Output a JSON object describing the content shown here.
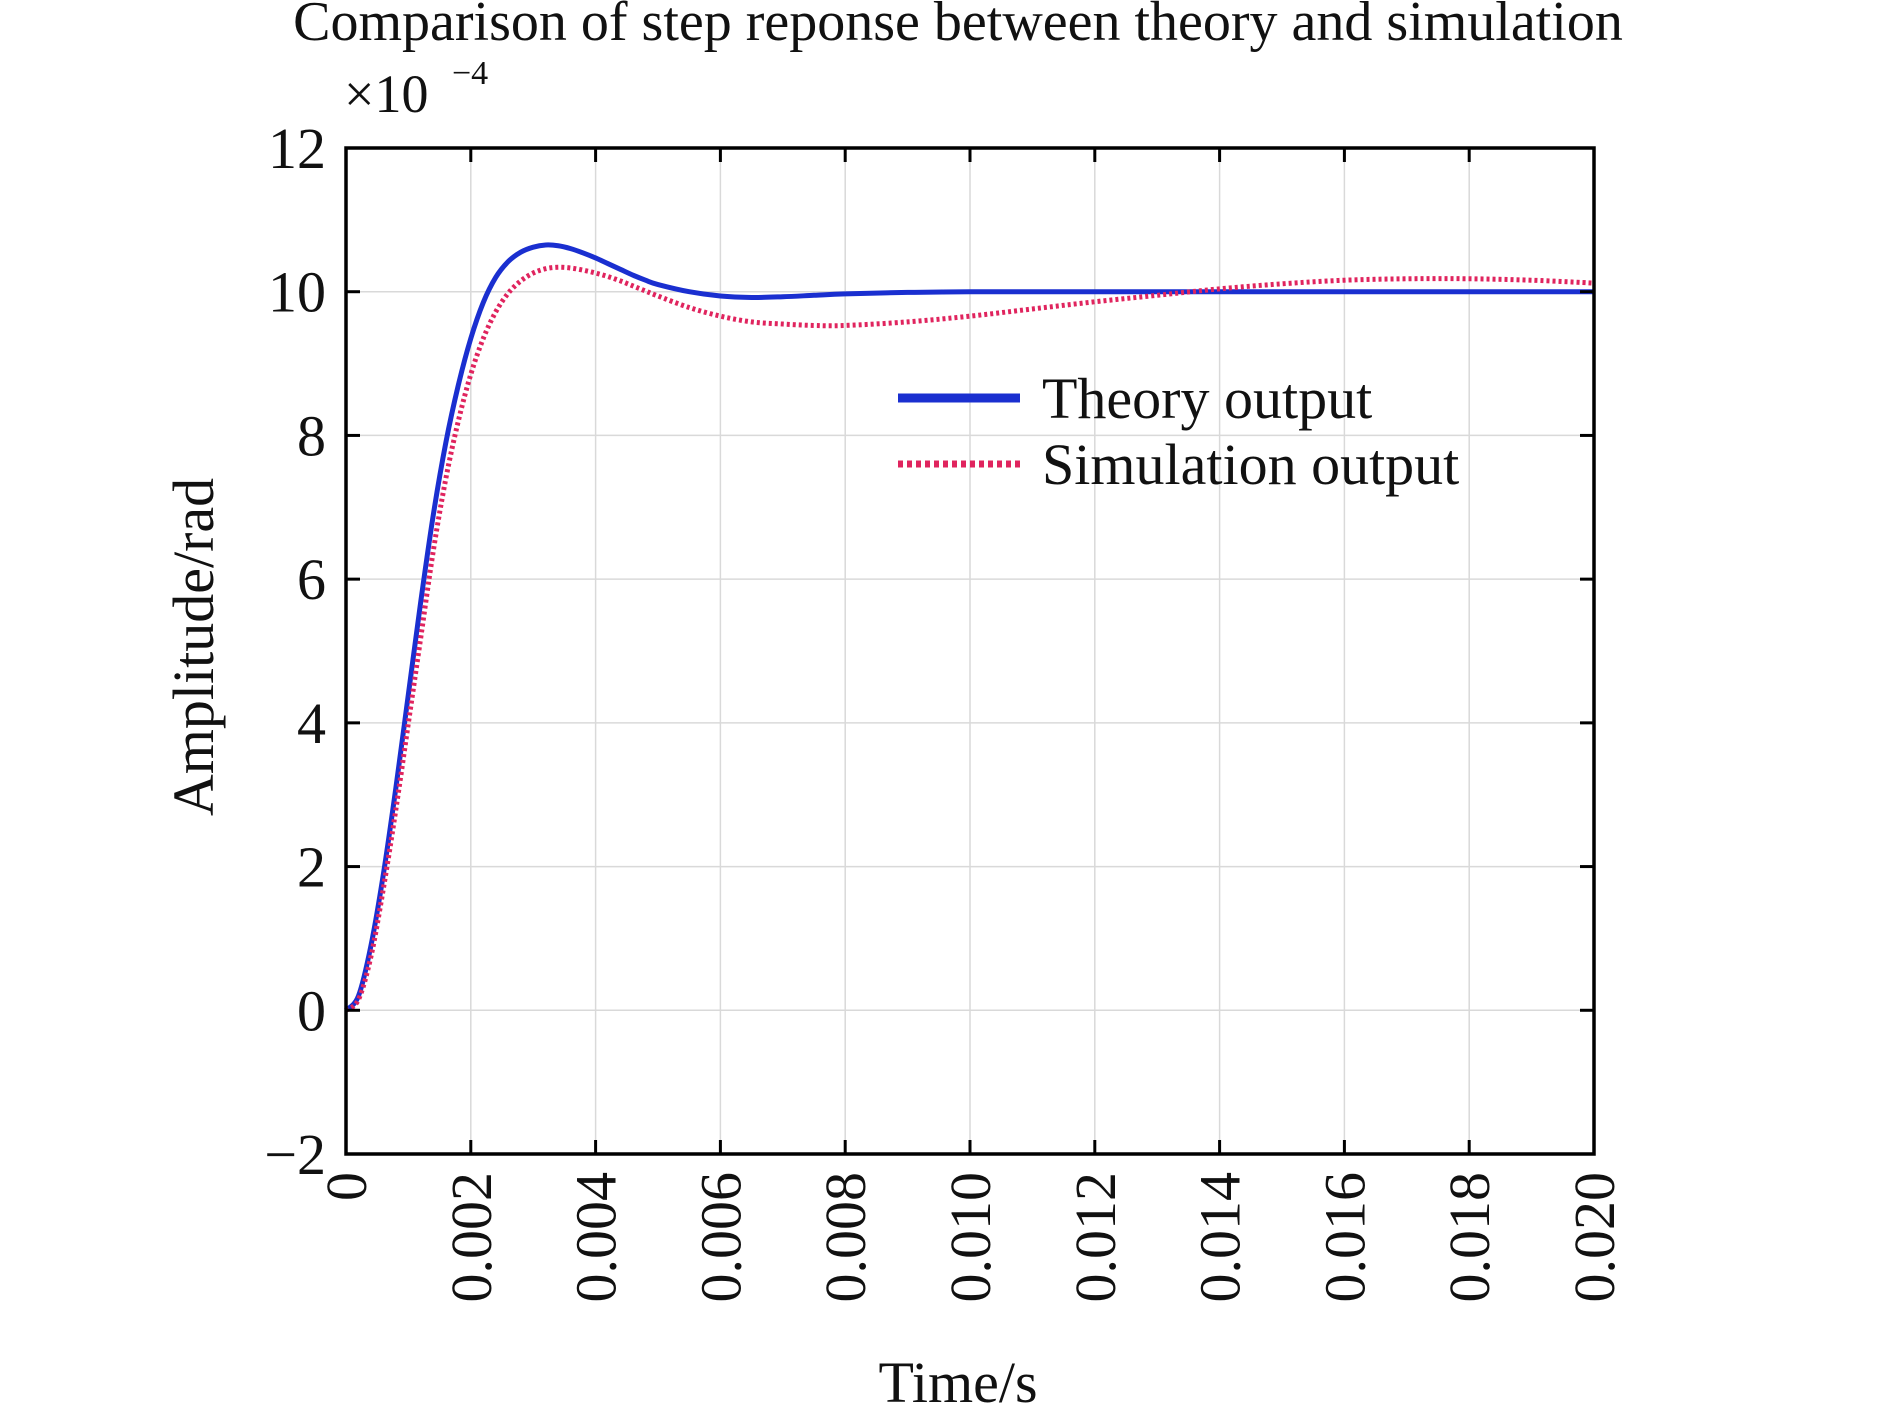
{
  "chart_data": {
    "type": "line",
    "title": "Comparison of step reponse between theory and simulation",
    "xlabel": "Time/s",
    "ylabel": "Amplitude/rad",
    "y_scale_label": "×10",
    "y_scale_exponent": "−4",
    "xlim": [
      0,
      0.02
    ],
    "ylim": [
      -2,
      12
    ],
    "grid": true,
    "legend_position": "top-right",
    "x_ticks": [
      0,
      0.002,
      0.004,
      0.006,
      0.008,
      0.01,
      0.012,
      0.014,
      0.016,
      0.018,
      0.02
    ],
    "x_tick_labels": [
      "0",
      "0.002",
      "0.004",
      "0.006",
      "0.008",
      "0.010",
      "0.012",
      "0.014",
      "0.016",
      "0.018",
      "0.020"
    ],
    "y_ticks": [
      -2,
      0,
      2,
      4,
      6,
      8,
      10,
      12
    ],
    "y_tick_labels": [
      "−2",
      "0",
      "2",
      "4",
      "6",
      "8",
      "10",
      "12"
    ],
    "series": [
      {
        "name": "Theory output",
        "color": "#1a2fd0",
        "style": "solid",
        "x": [
          0,
          0.0002,
          0.0004,
          0.0006,
          0.0008,
          0.001,
          0.0012,
          0.0014,
          0.0016,
          0.0018,
          0.002,
          0.0022,
          0.0024,
          0.0026,
          0.0028,
          0.003,
          0.0032,
          0.0034,
          0.0036,
          0.0038,
          0.004,
          0.0042,
          0.0044,
          0.0046,
          0.0048,
          0.005,
          0.0055,
          0.006,
          0.0065,
          0.007,
          0.0075,
          0.008,
          0.009,
          0.01,
          0.012,
          0.014,
          0.016,
          0.018,
          0.02
        ],
        "y": [
          0,
          0.2,
          0.9,
          1.9,
          3.1,
          4.4,
          5.7,
          6.9,
          7.9,
          8.7,
          9.35,
          9.85,
          10.2,
          10.42,
          10.55,
          10.62,
          10.65,
          10.64,
          10.6,
          10.54,
          10.47,
          10.39,
          10.31,
          10.23,
          10.16,
          10.1,
          10.0,
          9.94,
          9.92,
          9.93,
          9.95,
          9.97,
          9.99,
          10.0,
          10.0,
          10.0,
          10.0,
          10.0,
          10.0
        ]
      },
      {
        "name": "Simulation output",
        "color": "#e0245e",
        "style": "dotted",
        "x": [
          0,
          0.0002,
          0.0004,
          0.0006,
          0.0008,
          0.001,
          0.0012,
          0.0014,
          0.0016,
          0.0018,
          0.002,
          0.0022,
          0.0024,
          0.0026,
          0.0028,
          0.003,
          0.0032,
          0.0034,
          0.0036,
          0.0038,
          0.004,
          0.0042,
          0.0044,
          0.0046,
          0.0048,
          0.005,
          0.0055,
          0.006,
          0.0065,
          0.007,
          0.0075,
          0.008,
          0.009,
          0.01,
          0.011,
          0.012,
          0.013,
          0.014,
          0.015,
          0.016,
          0.017,
          0.018,
          0.019,
          0.02
        ],
        "y": [
          0,
          0.15,
          0.75,
          1.7,
          2.8,
          4.0,
          5.2,
          6.4,
          7.4,
          8.2,
          8.85,
          9.35,
          9.72,
          9.98,
          10.15,
          10.26,
          10.32,
          10.34,
          10.33,
          10.3,
          10.26,
          10.21,
          10.15,
          10.08,
          10.01,
          9.94,
          9.78,
          9.66,
          9.58,
          9.55,
          9.53,
          9.53,
          9.58,
          9.66,
          9.76,
          9.86,
          9.95,
          10.04,
          10.11,
          10.16,
          10.18,
          10.18,
          10.16,
          10.12
        ]
      }
    ]
  }
}
